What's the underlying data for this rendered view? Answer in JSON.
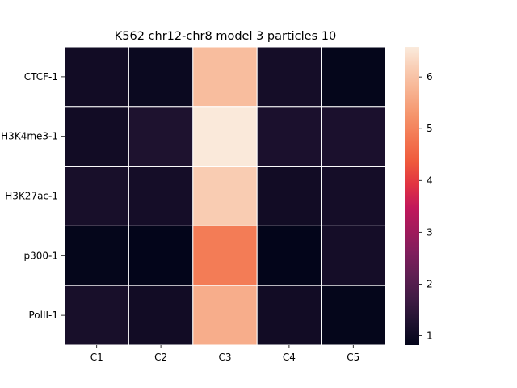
{
  "chart_data": {
    "type": "heatmap",
    "title": "K562 chr12-chr8 model 3 particles 10",
    "rows": [
      "CTCF-1",
      "H3K4me3-1",
      "H3K27ac-1",
      "p300-1",
      "PolII-1"
    ],
    "columns": [
      "C1",
      "C2",
      "C3",
      "C4",
      "C5"
    ],
    "values": [
      [
        1.05,
        0.95,
        5.9,
        1.1,
        0.85
      ],
      [
        1.05,
        1.25,
        6.55,
        1.2,
        1.2
      ],
      [
        1.15,
        1.1,
        6.15,
        1.05,
        1.1
      ],
      [
        0.85,
        0.82,
        4.9,
        0.82,
        1.1
      ],
      [
        1.15,
        1.05,
        5.65,
        1.05,
        0.85
      ]
    ],
    "colorbar": {
      "min": 0.82,
      "max": 6.58,
      "ticks": [
        1,
        2,
        3,
        4,
        5,
        6
      ]
    },
    "colors": {
      "stops": [
        "#03051a",
        "#1f1230",
        "#3f1b44",
        "#5e1f52",
        "#7f1e5c",
        "#a11a5b",
        "#c2185b",
        "#e13342",
        "#ef5a3c",
        "#f37651",
        "#f5946b",
        "#f7b08e",
        "#f9cbb1",
        "#faebdd"
      ]
    }
  }
}
